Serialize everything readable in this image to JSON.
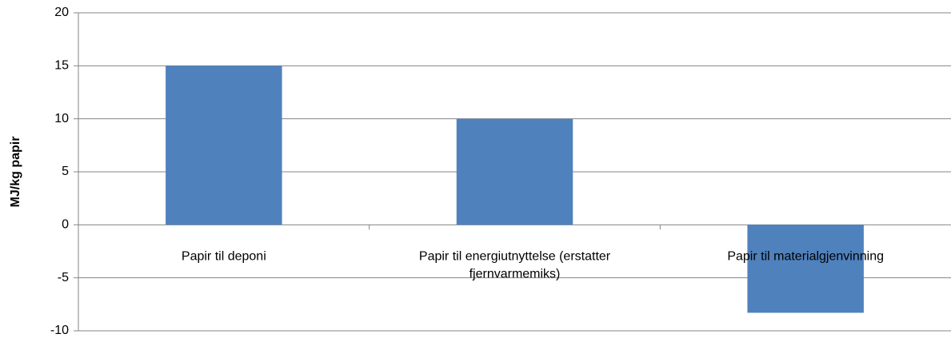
{
  "chart_data": {
    "type": "bar",
    "y_label": "MJ/kg papir",
    "categories": [
      "Papir til deponi",
      "Papir til energiutnyttelse (erstatter fjernvarmemiks)",
      "Papir til materialgjenvinning"
    ],
    "values": [
      15,
      10,
      -8.3
    ],
    "color": "#4f81bd",
    "ylim": [
      -10,
      20
    ],
    "yticks": [
      -10,
      -5,
      0,
      5,
      10,
      15,
      20
    ],
    "grid": true
  }
}
